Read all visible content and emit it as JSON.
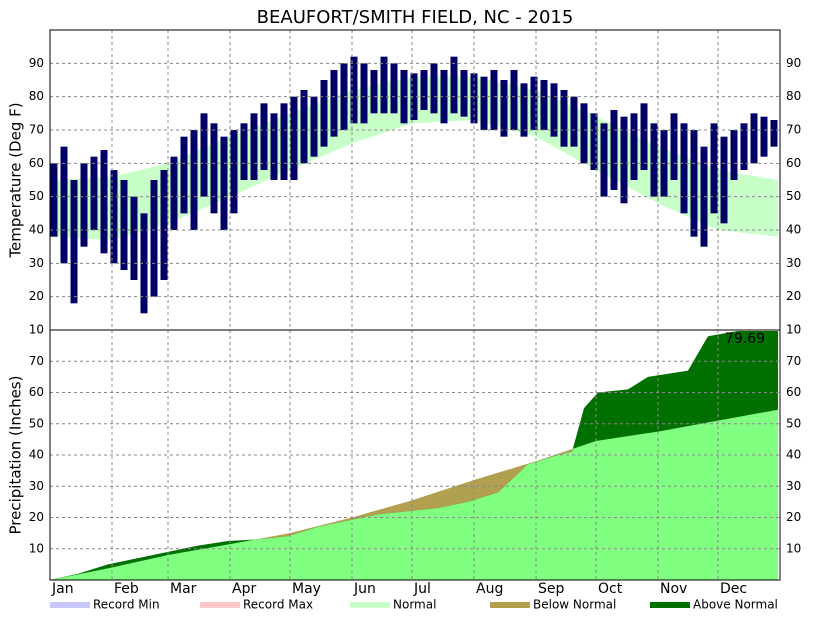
{
  "chart_data": [
    {
      "type": "range-bar",
      "title": "BEAUFORT/SMITH FIELD, NC - 2015",
      "ylabel": "Temperature (Deg F)",
      "xlim": [
        1,
        366
      ],
      "xticks": [
        {
          "value": 1,
          "label": "Jan"
        },
        {
          "value": 32,
          "label": "Feb"
        },
        {
          "value": 60,
          "label": "Mar"
        },
        {
          "value": 91,
          "label": "Apr"
        },
        {
          "value": 121,
          "label": "May"
        },
        {
          "value": 152,
          "label": "Jun"
        },
        {
          "value": 182,
          "label": "Jul"
        },
        {
          "value": 213,
          "label": "Aug"
        },
        {
          "value": 244,
          "label": "Sep"
        },
        {
          "value": 274,
          "label": "Oct"
        },
        {
          "value": 305,
          "label": "Nov"
        },
        {
          "value": 335,
          "label": "Dec"
        }
      ],
      "ylim": [
        10,
        100
      ],
      "yticks": [
        10,
        20,
        30,
        40,
        50,
        60,
        70,
        80,
        90
      ],
      "grid": true,
      "color": "#000066",
      "x": [
        3,
        8,
        13,
        18,
        23,
        28,
        33,
        38,
        43,
        48,
        53,
        58,
        63,
        68,
        73,
        78,
        83,
        88,
        93,
        98,
        103,
        108,
        113,
        118,
        123,
        128,
        133,
        138,
        143,
        148,
        153,
        158,
        163,
        168,
        173,
        178,
        183,
        188,
        193,
        198,
        203,
        208,
        213,
        218,
        223,
        228,
        233,
        238,
        243,
        248,
        253,
        258,
        263,
        268,
        273,
        278,
        283,
        288,
        293,
        298,
        303,
        308,
        313,
        318,
        323,
        328,
        333,
        338,
        343,
        348,
        353,
        358,
        363
      ],
      "highs": [
        60,
        65,
        55,
        60,
        62,
        64,
        58,
        55,
        50,
        45,
        55,
        58,
        62,
        68,
        70,
        75,
        72,
        68,
        70,
        72,
        75,
        78,
        75,
        78,
        80,
        82,
        80,
        85,
        88,
        90,
        92,
        90,
        88,
        92,
        90,
        88,
        87,
        88,
        90,
        88,
        92,
        88,
        87,
        86,
        88,
        85,
        88,
        84,
        86,
        85,
        84,
        82,
        80,
        78,
        75,
        72,
        76,
        74,
        75,
        78,
        72,
        70,
        75,
        72,
        70,
        65,
        72,
        68,
        70,
        72,
        75,
        74,
        73
      ],
      "lows": [
        38,
        30,
        18,
        35,
        40,
        33,
        30,
        28,
        25,
        15,
        20,
        25,
        40,
        45,
        40,
        50,
        45,
        40,
        45,
        55,
        55,
        58,
        55,
        55,
        55,
        60,
        62,
        65,
        68,
        70,
        72,
        72,
        75,
        75,
        75,
        72,
        73,
        76,
        75,
        72,
        75,
        74,
        72,
        70,
        70,
        68,
        70,
        68,
        70,
        70,
        68,
        65,
        65,
        60,
        58,
        50,
        52,
        48,
        55,
        58,
        50,
        50,
        55,
        45,
        38,
        35,
        45,
        42,
        55,
        58,
        60,
        62,
        65
      ],
      "normal": {
        "color": "#c8ffc8",
        "x": [
          1,
          32,
          60,
          91,
          121,
          152,
          182,
          213,
          244,
          274,
          305,
          335,
          365
        ],
        "low": [
          38,
          37,
          42,
          50,
          58,
          66,
          72,
          73,
          68,
          58,
          48,
          40,
          38
        ],
        "high": [
          55,
          56,
          60,
          68,
          75,
          82,
          86,
          86,
          82,
          74,
          65,
          58,
          55
        ]
      }
    },
    {
      "type": "cumulative-area",
      "ylabel": "Precipitation (Inches)",
      "xlim": [
        1,
        366
      ],
      "xticks": [
        {
          "value": 1,
          "label": "Jan"
        },
        {
          "value": 32,
          "label": "Feb"
        },
        {
          "value": 60,
          "label": "Mar"
        },
        {
          "value": 91,
          "label": "Apr"
        },
        {
          "value": 121,
          "label": "May"
        },
        {
          "value": 152,
          "label": "Jun"
        },
        {
          "value": 182,
          "label": "Jul"
        },
        {
          "value": 213,
          "label": "Aug"
        },
        {
          "value": 244,
          "label": "Sep"
        },
        {
          "value": 274,
          "label": "Oct"
        },
        {
          "value": 305,
          "label": "Nov"
        },
        {
          "value": 335,
          "label": "Dec"
        }
      ],
      "ylim": [
        0,
        80
      ],
      "yticks": [
        10,
        20,
        30,
        40,
        50,
        60,
        70
      ],
      "grid": true,
      "observed": {
        "x": [
          1,
          15,
          30,
          45,
          60,
          75,
          90,
          105,
          120,
          135,
          150,
          165,
          180,
          195,
          210,
          225,
          240,
          255,
          262,
          268,
          275,
          290,
          300,
          320,
          330,
          345,
          365
        ],
        "values": [
          0,
          2,
          5,
          7,
          9,
          11,
          12.5,
          13,
          14,
          17,
          19,
          21,
          22,
          23,
          25,
          28,
          37,
          40,
          41,
          55,
          60,
          61,
          65,
          67,
          78,
          79.69,
          79.69
        ]
      },
      "normal": {
        "color": "#80ff80",
        "x": [
          1,
          32,
          60,
          91,
          121,
          152,
          182,
          213,
          244,
          274,
          305,
          335,
          365
        ],
        "values": [
          0,
          4,
          8,
          11.5,
          15,
          20,
          25.5,
          32,
          38,
          44.5,
          47.5,
          51,
          54.5
        ]
      },
      "annotation": "79.69",
      "legend": [
        {
          "name": "Record Min",
          "color": "#c8c8ff"
        },
        {
          "name": "Record Max",
          "color": "#ffc8c8"
        },
        {
          "name": "Normal",
          "color": "#c8ffc8"
        },
        {
          "name": "Below Normal",
          "color": "#b0a050"
        },
        {
          "name": "Above Normal",
          "color": "#007000"
        }
      ]
    }
  ]
}
